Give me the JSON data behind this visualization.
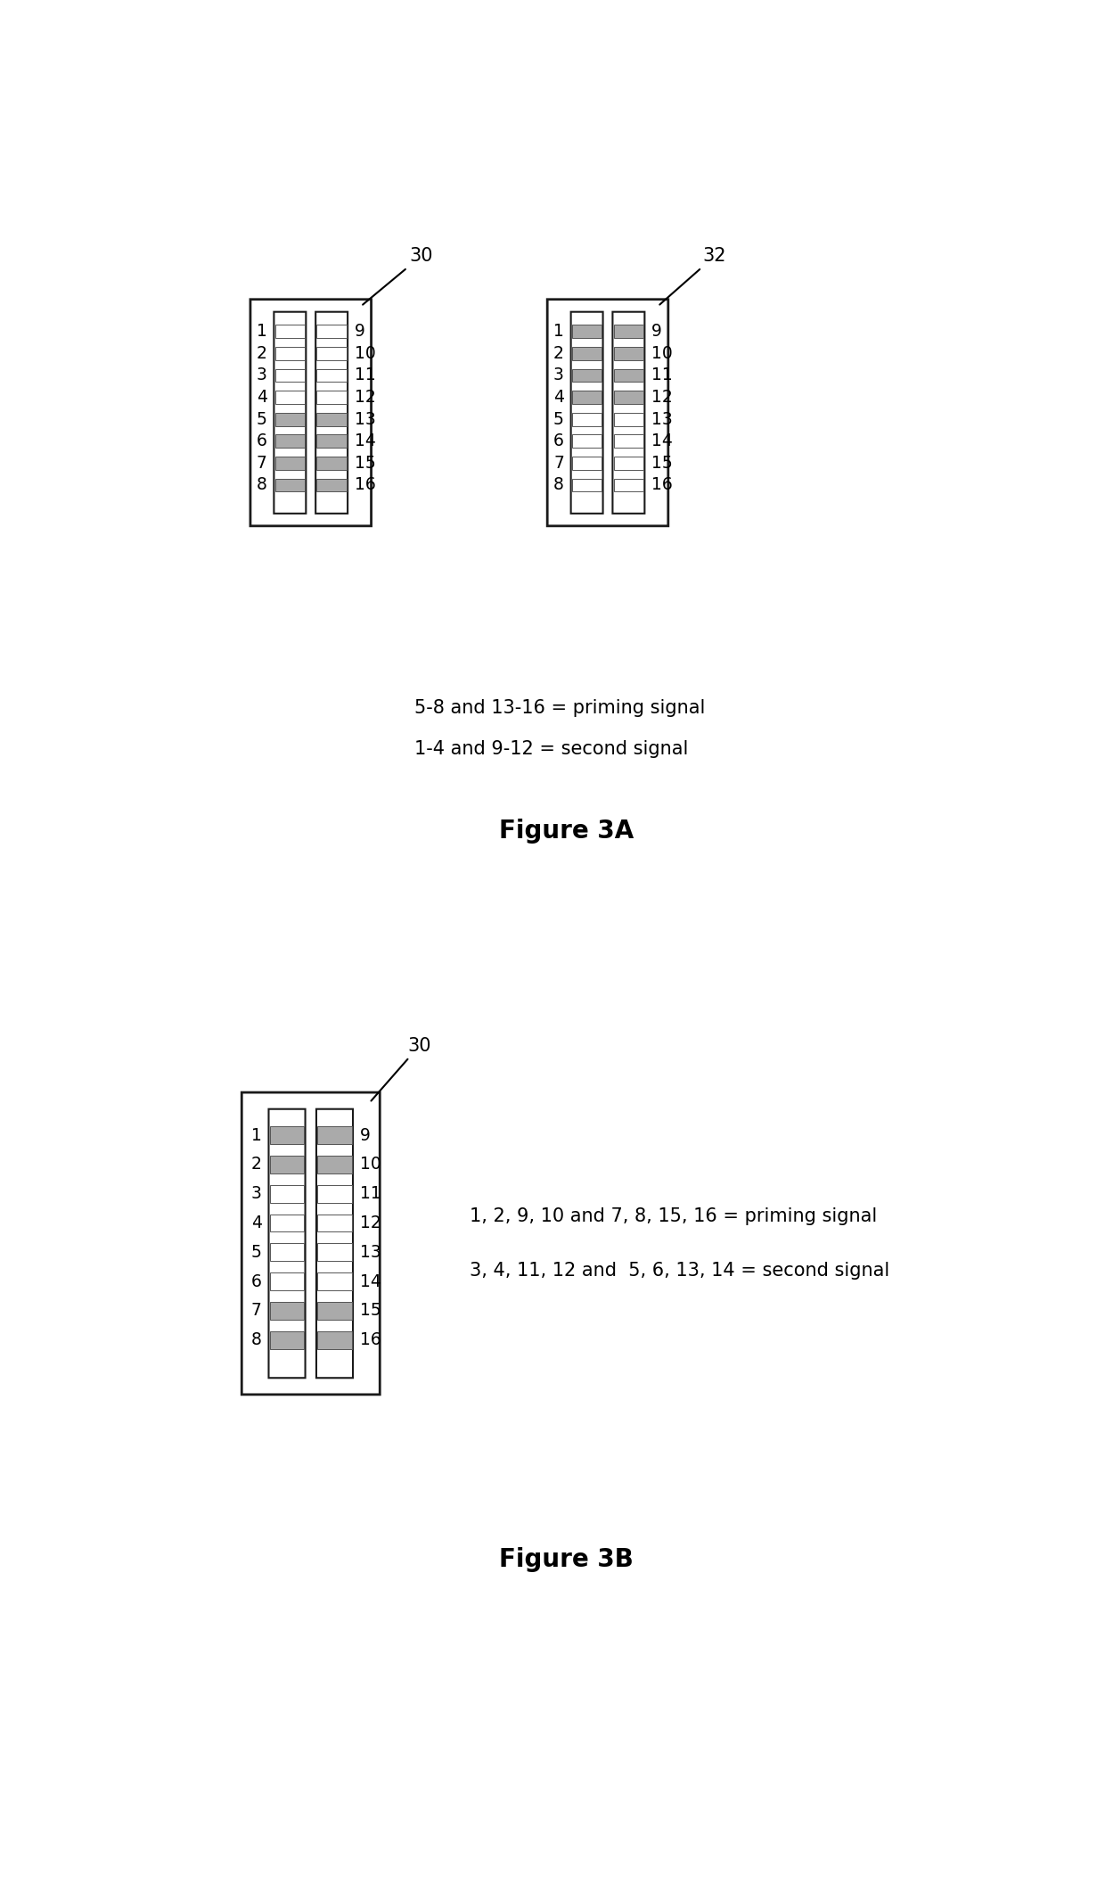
{
  "bg_color": "#ffffff",
  "line_color": "#1a1a1a",
  "electrode_gray": "#aaaaaa",
  "electrode_white": "#ffffff",
  "fig3a": {
    "device1_label": "30",
    "device2_label": "32",
    "legend1": "5-8 and 13-16 = priming signal",
    "legend2": "1-4 and 9-12 = second signal",
    "figure_label": "Figure 3A",
    "device1_pattern": [
      0,
      0,
      0,
      0,
      1,
      1,
      1,
      1,
      0,
      0,
      0,
      0,
      1,
      1,
      1,
      1
    ],
    "device2_pattern": [
      1,
      1,
      1,
      1,
      0,
      0,
      0,
      0,
      1,
      1,
      1,
      1,
      0,
      0,
      0,
      0
    ]
  },
  "fig3b": {
    "device_label": "30",
    "legend1": "1, 2, 9, 10 and 7, 8, 15, 16 = priming signal",
    "legend2": "3, 4, 11, 12 and  5, 6, 13, 14 = second signal",
    "figure_label": "Figure 3B",
    "device_pattern": [
      1,
      1,
      0,
      0,
      0,
      0,
      1,
      1,
      1,
      1,
      0,
      0,
      0,
      0,
      1,
      1
    ]
  }
}
